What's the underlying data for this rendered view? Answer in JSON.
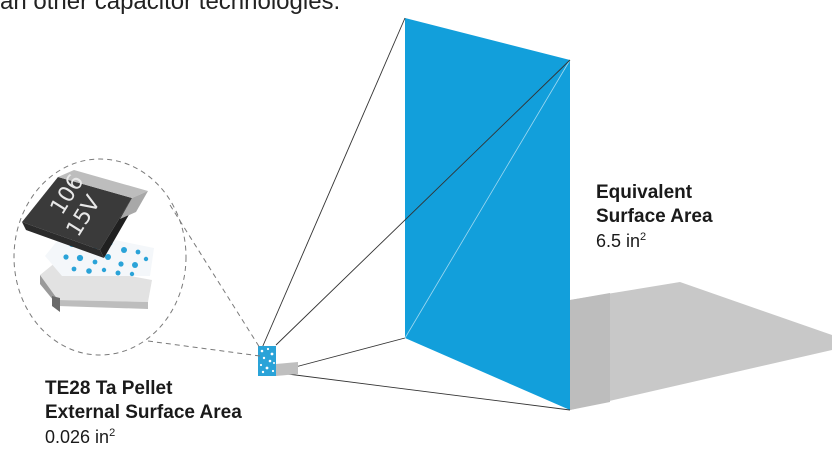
{
  "caption": "an other capacitor technologies.",
  "equivalent": {
    "title_line1": "Equivalent",
    "title_line2": "Surface Area",
    "value": "6.5 in",
    "exponent": "2"
  },
  "pellet": {
    "title_line1": "TE28 Ta Pellet",
    "title_line2": "External Surface Area",
    "value": "0.026 in",
    "exponent": "2"
  },
  "chip": {
    "marking_line1": "106",
    "marking_line2": "15V"
  },
  "colors": {
    "panel_blue": "#129fdb",
    "shadow_gray": "#c8c8c8",
    "chip_dark": "#3a3a3a"
  }
}
